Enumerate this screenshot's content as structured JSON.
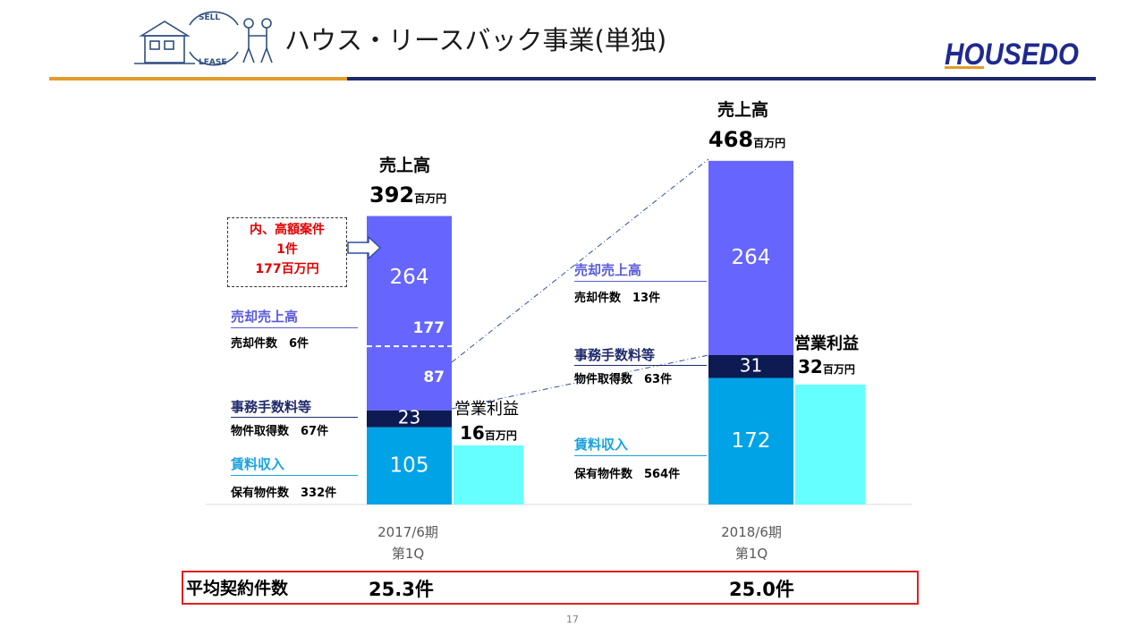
{
  "header": {
    "title": "ハウス・リースバック事業(単独)",
    "logo_text": "HOUSEDO",
    "illustration_words": [
      "SELL",
      "LEASE"
    ]
  },
  "colors": {
    "sales": "#6666ff",
    "fees": "#0d1b52",
    "rent": "#00a3e6",
    "profit": "#66ffff",
    "red_text": "#e00000",
    "label_blue": "#5a5adc",
    "label_navy": "#1f2a6b",
    "label_rent": "#1aa3de"
  },
  "chart_data": {
    "type": "bar",
    "stacked": true,
    "categories": [
      "2017/6期\n第1Q",
      "2018/6期\n第1Q"
    ],
    "series": [
      {
        "name": "賃料収入",
        "values": [
          105,
          172
        ]
      },
      {
        "name": "事務手数料等",
        "values": [
          23,
          31
        ]
      },
      {
        "name": "売却売上高",
        "values": [
          264,
          264
        ]
      }
    ],
    "operating_profit": {
      "name": "営業利益",
      "values": [
        16,
        32
      ]
    },
    "totals": [
      392,
      468
    ],
    "sale_split_2017": {
      "high_value": 177,
      "other": 87
    },
    "unit": "百万円"
  },
  "labels": {
    "sales_title": "売上高",
    "unit": "百万円",
    "profit_title": "営業利益",
    "callout": [
      "内、高額案件",
      "1件",
      "177百万円"
    ],
    "y2017": {
      "sale_label": "売却売上高",
      "sale_count": "売却件数　6件",
      "fee_label": "事務手数料等",
      "fee_count": "物件取得数　67件",
      "rent_label": "賃料収入",
      "rent_count": "保有物件数　332件"
    },
    "y2018": {
      "sale_label": "売却売上高",
      "sale_count": "売却件数　13件",
      "fee_label": "事務手数料等",
      "fee_count": "物件取得数　63件",
      "rent_label": "賃料収入",
      "rent_count": "保有物件数　564件"
    },
    "x_labels": [
      [
        "2017/6期",
        "第1Q"
      ],
      [
        "2018/6期",
        "第1Q"
      ]
    ]
  },
  "avg_contracts": {
    "label": "平均契約件数",
    "values": [
      "25.3件",
      "25.0件"
    ]
  },
  "page_number": "17"
}
